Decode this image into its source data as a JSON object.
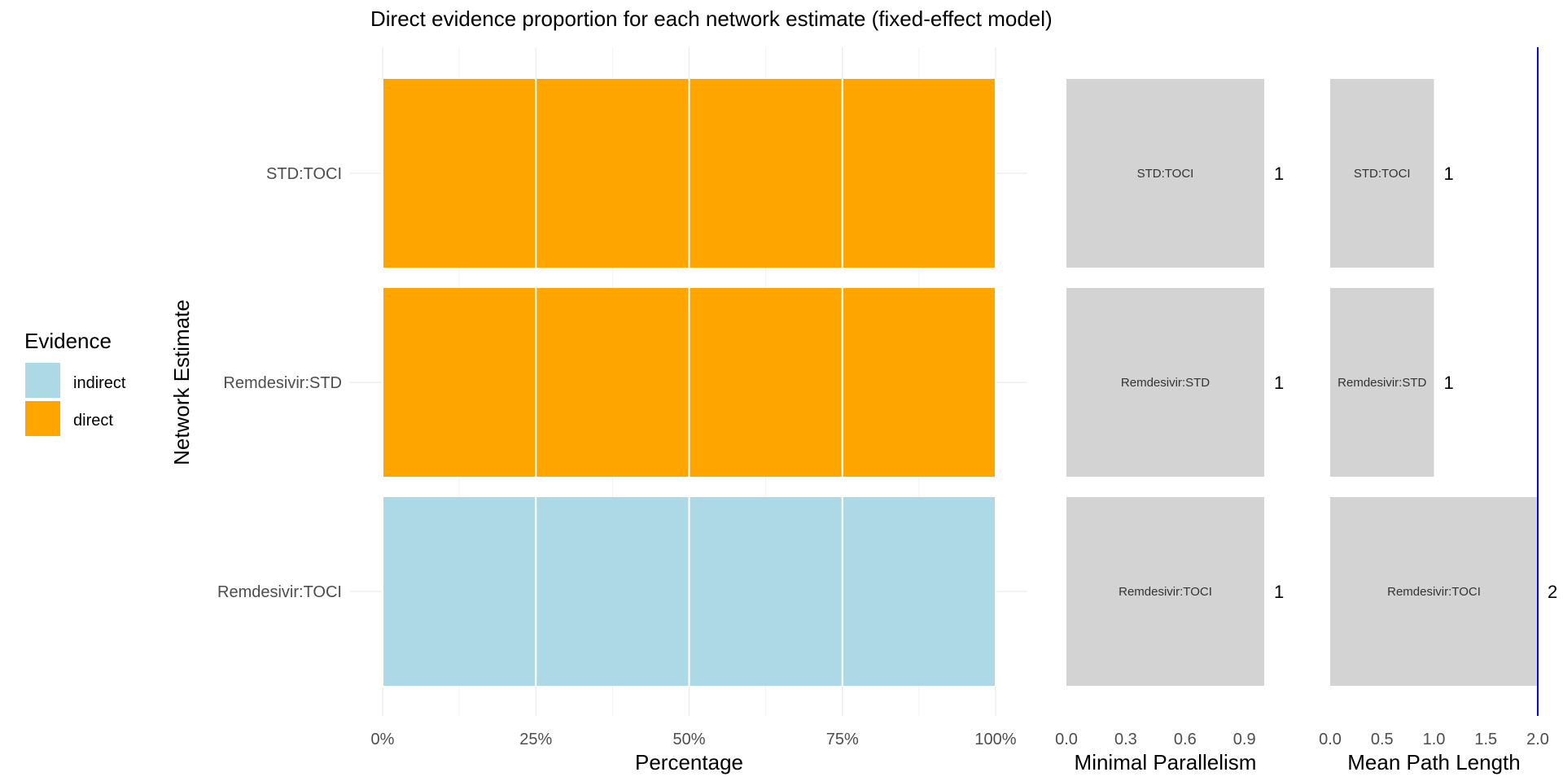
{
  "chart_data": {
    "type": "bar",
    "title": "Direct evidence proportion for each network estimate (fixed-effect model)",
    "ylabel": "Network Estimate",
    "categories": [
      "STD:TOCI",
      "Remdesivir:STD",
      "Remdesivir:TOCI"
    ],
    "legend": {
      "title": "Evidence",
      "placement": "left",
      "entries": [
        {
          "label": "indirect",
          "color": "#ADD8E6"
        },
        {
          "label": "direct",
          "color": "#FFA500"
        }
      ]
    },
    "panels": [
      {
        "name": "evidence",
        "xlabel": "Percentage",
        "xlim": [
          0,
          1
        ],
        "ticks": [
          0,
          0.25,
          0.5,
          0.75,
          1
        ],
        "tick_labels": [
          "0%",
          "25%",
          "50%",
          "75%",
          "100%"
        ],
        "grid": true,
        "series": [
          {
            "name": "direct",
            "values": [
              1,
              1,
              0
            ]
          },
          {
            "name": "indirect",
            "values": [
              0,
              0,
              1
            ]
          }
        ]
      },
      {
        "name": "minimal-parallelism",
        "xlabel": "Minimal Parallelism",
        "xlim": [
          0,
          1
        ],
        "ticks": [
          0,
          0.3,
          0.6,
          0.9
        ],
        "tick_labels": [
          "0.0",
          "0.3",
          "0.6",
          "0.9"
        ],
        "values": [
          1,
          1,
          1
        ],
        "value_labels": [
          "1",
          "1",
          "1"
        ],
        "bar_color": "#D3D3D3"
      },
      {
        "name": "mean-path-length",
        "xlabel": "Mean Path Length",
        "xlim": [
          0,
          2
        ],
        "ticks": [
          0,
          0.5,
          1,
          1.5,
          2
        ],
        "tick_labels": [
          "0.0",
          "0.5",
          "1.0",
          "1.5",
          "2.0"
        ],
        "values": [
          1,
          1,
          2
        ],
        "value_labels": [
          "1",
          "1",
          "2"
        ],
        "bar_color": "#D3D3D3",
        "reference_line": {
          "x": 2,
          "color": "#0000FF"
        }
      }
    ]
  }
}
